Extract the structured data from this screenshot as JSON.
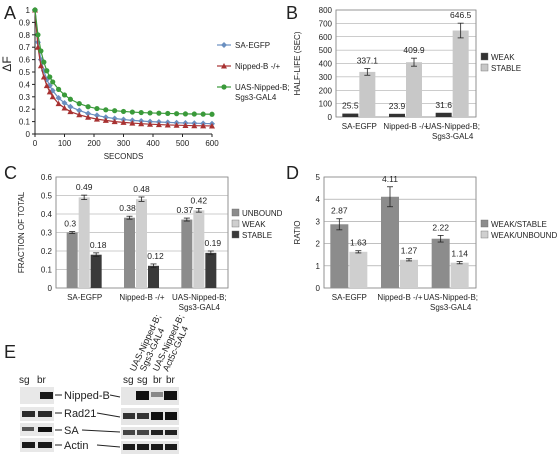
{
  "panel_letters": [
    "A",
    "B",
    "C",
    "D",
    "E"
  ],
  "chart_data": [
    {
      "panel": "A",
      "type": "line",
      "title": "",
      "xlabel": "SECONDS",
      "ylabel": "ΔF",
      "xlim": [
        0,
        600
      ],
      "ylim": [
        0,
        1
      ],
      "x_ticks": [
        "0",
        "100",
        "200",
        "300",
        "400",
        "500",
        "600"
      ],
      "y_ticks": [
        "0",
        "0.1",
        "0.2",
        "0.3",
        "0.4",
        "0.5",
        "0.6",
        "0.7",
        "0.8",
        "0.9",
        "1"
      ],
      "grid": false,
      "legend_position": "right",
      "x": [
        0,
        10,
        20,
        30,
        40,
        50,
        60,
        80,
        100,
        120,
        150,
        180,
        210,
        240,
        270,
        300,
        330,
        360,
        390,
        420,
        450,
        480,
        510,
        540,
        570,
        600
      ],
      "series": [
        {
          "name": "SA-EGFP",
          "color": "#6a8fc0",
          "marker": "diamond",
          "values": [
            1.0,
            0.74,
            0.6,
            0.51,
            0.44,
            0.39,
            0.35,
            0.29,
            0.25,
            0.22,
            0.19,
            0.165,
            0.15,
            0.135,
            0.125,
            0.117,
            0.11,
            0.105,
            0.1,
            0.097,
            0.094,
            0.091,
            0.089,
            0.087,
            0.085,
            0.083
          ]
        },
        {
          "name": "Nipped-B -/+",
          "color": "#a83232",
          "marker": "triangle",
          "values": [
            1.0,
            0.7,
            0.55,
            0.46,
            0.39,
            0.34,
            0.3,
            0.245,
            0.21,
            0.18,
            0.155,
            0.135,
            0.12,
            0.11,
            0.1,
            0.094,
            0.088,
            0.083,
            0.079,
            0.076,
            0.073,
            0.071,
            0.069,
            0.067,
            0.066,
            0.065
          ]
        },
        {
          "name": "UAS-Nipped-B; Sgs3-GAL4",
          "color": "#3a9a3a",
          "marker": "circle",
          "values": [
            1.0,
            0.8,
            0.67,
            0.58,
            0.51,
            0.46,
            0.42,
            0.36,
            0.315,
            0.28,
            0.245,
            0.22,
            0.205,
            0.195,
            0.188,
            0.182,
            0.177,
            0.173,
            0.17,
            0.168,
            0.166,
            0.164,
            0.162,
            0.161,
            0.16,
            0.159
          ]
        }
      ]
    },
    {
      "panel": "B",
      "type": "bar",
      "title": "",
      "xlabel": "",
      "ylabel": "HALF-LIFE (SEC)",
      "ylim": [
        0,
        800
      ],
      "y_ticks": [
        "0",
        "100",
        "200",
        "300",
        "400",
        "500",
        "600",
        "700",
        "800"
      ],
      "grid": true,
      "legend_position": "right",
      "categories": [
        "SA-EGFP",
        "Nipped-B -/+",
        "UAS-Nipped-B; Sgs3-GAL4"
      ],
      "series": [
        {
          "name": "WEAK",
          "color": "#333333",
          "values": [
            25.5,
            23.9,
            31.6
          ],
          "errors": [
            0,
            0,
            0
          ],
          "labels": [
            "25.5",
            "23.9",
            "31.6"
          ]
        },
        {
          "name": "STABLE",
          "color": "#c8c8c8",
          "values": [
            337.1,
            409.9,
            646.5
          ],
          "errors": [
            25,
            30,
            55
          ],
          "labels": [
            "337.1",
            "409.9",
            "646.5"
          ]
        }
      ]
    },
    {
      "panel": "C",
      "type": "bar",
      "title": "",
      "xlabel": "",
      "ylabel": "FRACTION OF TOTAL",
      "ylim": [
        0,
        0.6
      ],
      "y_ticks": [
        "0",
        "0.1",
        "0.2",
        "0.3",
        "0.4",
        "0.5",
        "0.6"
      ],
      "grid": true,
      "legend_position": "right",
      "categories": [
        "SA-EGFP",
        "Nipped-B -/+",
        "UAS-Nipped-B; Sgs3-GAL4"
      ],
      "series": [
        {
          "name": "UNBOUND",
          "color": "#8c8c8c",
          "values": [
            0.3,
            0.38,
            0.37
          ],
          "errors": [
            0.005,
            0.008,
            0.008
          ],
          "labels": [
            "0.3",
            "0.38",
            "0.37"
          ]
        },
        {
          "name": "WEAK",
          "color": "#cfcfcf",
          "values": [
            0.49,
            0.48,
            0.42
          ],
          "errors": [
            0.012,
            0.012,
            0.01
          ],
          "labels": [
            "0.49",
            "0.48",
            "0.42"
          ]
        },
        {
          "name": "STABLE",
          "color": "#3a3a3a",
          "values": [
            0.18,
            0.12,
            0.19
          ],
          "errors": [
            0.01,
            0.01,
            0.01
          ],
          "labels": [
            "0.18",
            "0.12",
            "0.19"
          ]
        }
      ]
    },
    {
      "panel": "D",
      "type": "bar",
      "title": "",
      "xlabel": "",
      "ylabel": "RATIO",
      "ylim": [
        0,
        5
      ],
      "y_ticks": [
        "0",
        "1",
        "2",
        "3",
        "4",
        "5"
      ],
      "grid": true,
      "legend_position": "right",
      "categories": [
        "SA-EGFP",
        "Nipped-B -/+",
        "UAS-Nipped-B; Sgs3-GAL4"
      ],
      "series": [
        {
          "name": "WEAK/STABLE",
          "color": "#8c8c8c",
          "values": [
            2.87,
            4.11,
            2.22
          ],
          "errors": [
            0.25,
            0.45,
            0.15
          ],
          "labels": [
            "2.87",
            "4.11",
            "2.22"
          ]
        },
        {
          "name": "WEAK/UNBOUND",
          "color": "#cfcfcf",
          "values": [
            1.63,
            1.27,
            1.14
          ],
          "errors": [
            0.05,
            0.05,
            0.05
          ],
          "labels": [
            "1.63",
            "1.27",
            "1.14"
          ]
        }
      ]
    }
  ],
  "blot_e": {
    "left_lanes": [
      "sg",
      "br"
    ],
    "right_lanes": [
      "sg",
      "sg",
      "br",
      "br"
    ],
    "band_labels": [
      "Nipped-B",
      "Rad21",
      "SA",
      "Actin"
    ],
    "column_labels": [
      "UAS-Nipped-B;",
      "Sgs3-GAL4",
      "UAS-Nipped-B;",
      "Act5c-GAL4"
    ]
  }
}
